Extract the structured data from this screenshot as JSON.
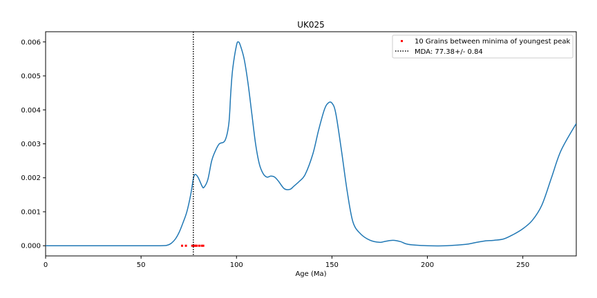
{
  "chart_data": {
    "type": "line",
    "title": "UK025",
    "xlabel": "Age (Ma)",
    "ylabel": "",
    "xlim": [
      0,
      278
    ],
    "ylim": [
      -0.0003,
      0.0063
    ],
    "x_ticks": [
      0,
      50,
      100,
      150,
      200,
      250
    ],
    "y_ticks": [
      0.0,
      0.001,
      0.002,
      0.003,
      0.004,
      0.005,
      0.006
    ],
    "x_tick_labels": [
      "0",
      "50",
      "100",
      "150",
      "200",
      "250"
    ],
    "y_tick_labels": [
      "0.000",
      "0.001",
      "0.002",
      "0.003",
      "0.004",
      "0.005",
      "0.006"
    ],
    "grid": false,
    "legend_position": "top-right",
    "colors": {
      "curve": "#1f77b4",
      "grains": "#ff0000",
      "mda_line": "#000000"
    },
    "series": [
      {
        "type": "line",
        "x": [
          0,
          20,
          40,
          60,
          64,
          66,
          68,
          70,
          72,
          74,
          76,
          77.5,
          78.5,
          80,
          82,
          83,
          85,
          87,
          89,
          91,
          94,
          96,
          97,
          98,
          100,
          101,
          102,
          104,
          106,
          108,
          110,
          112,
          114,
          116,
          118,
          120,
          122,
          125,
          128,
          130,
          133,
          136,
          140,
          143,
          146,
          148,
          150,
          152,
          155,
          158,
          161,
          165,
          170,
          175,
          178,
          182,
          186,
          190,
          200,
          210,
          220,
          225,
          230,
          235,
          240,
          245,
          250,
          255,
          260,
          265,
          270,
          278
        ],
        "y": [
          0.0,
          0.0,
          0.0,
          0.0,
          2e-05,
          8e-05,
          0.0002,
          0.0004,
          0.00068,
          0.001,
          0.0015,
          0.002,
          0.0021,
          0.002,
          0.00175,
          0.00172,
          0.00195,
          0.0025,
          0.0028,
          0.003,
          0.0031,
          0.0036,
          0.0045,
          0.0052,
          0.0059,
          0.006,
          0.0059,
          0.0055,
          0.0048,
          0.0039,
          0.003,
          0.0024,
          0.00212,
          0.00202,
          0.00205,
          0.00202,
          0.0019,
          0.00168,
          0.00166,
          0.00175,
          0.0019,
          0.0021,
          0.0027,
          0.0034,
          0.004,
          0.0042,
          0.0042,
          0.0039,
          0.0028,
          0.0016,
          0.0007,
          0.00035,
          0.00016,
          0.0001,
          0.00013,
          0.00016,
          0.00012,
          4e-05,
          0.0,
          0.0,
          4e-05,
          9e-05,
          0.00014,
          0.00016,
          0.0002,
          0.00033,
          0.0005,
          0.00075,
          0.0012,
          0.002,
          0.0028,
          0.0036
        ]
      },
      {
        "type": "scatter",
        "name": "10 Grains between minima of youngest peak",
        "x": [
          71.5,
          73.5,
          76.8,
          77.5,
          78.0,
          78.6,
          79.2,
          80.5,
          81.8,
          82.6
        ],
        "y": [
          0,
          0,
          0,
          0,
          0,
          0,
          0,
          0,
          0,
          0
        ]
      },
      {
        "type": "vline",
        "name": "MDA: 77.38+/- 0.84",
        "x": 77.38
      }
    ]
  }
}
